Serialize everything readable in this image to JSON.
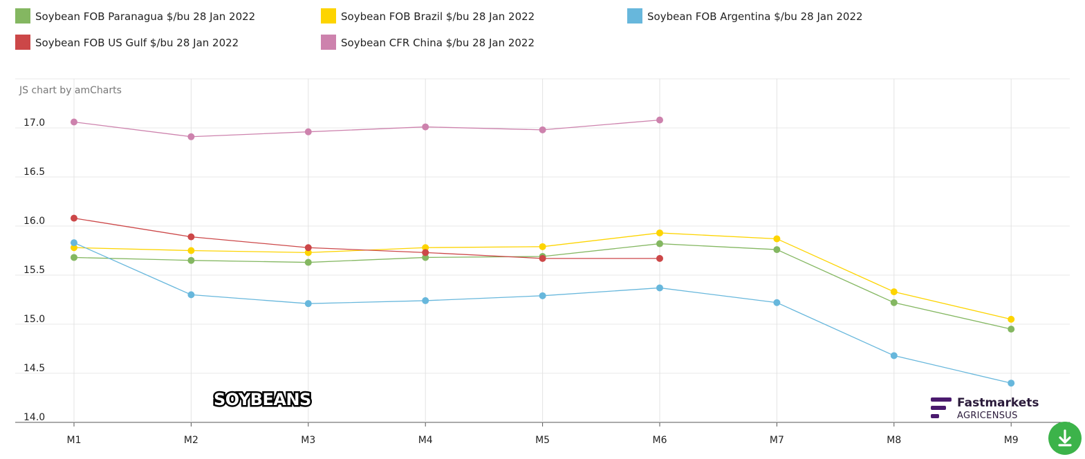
{
  "credit": "JS chart by amCharts",
  "overlay_label": "SOYBEANS",
  "brand": {
    "name": "Fastmarkets",
    "sub": "AGRICENSUS",
    "color": "#4a1a6e"
  },
  "download_icon": "download-icon",
  "chart_data": {
    "type": "line",
    "categories": [
      "M1",
      "M2",
      "M3",
      "M4",
      "M5",
      "M6",
      "M7",
      "M8",
      "M9"
    ],
    "ylim": [
      14.0,
      17.5
    ],
    "yticks": [
      "14.0",
      "14.5",
      "15.0",
      "15.5",
      "16.0",
      "16.5",
      "17.0"
    ],
    "grid": true,
    "legend_position": "top",
    "series": [
      {
        "name": "Soybean FOB Paranagua $/bu 28 Jan 2022",
        "color": "#84b761",
        "values": [
          15.68,
          15.65,
          15.63,
          15.68,
          15.69,
          15.82,
          15.76,
          15.22,
          14.95
        ]
      },
      {
        "name": "Soybean FOB Brazil $/bu 28 Jan 2022",
        "color": "#fdd400",
        "values": [
          15.78,
          15.75,
          15.73,
          15.78,
          15.79,
          15.93,
          15.87,
          15.33,
          15.05
        ]
      },
      {
        "name": "Soybean FOB Argentina $/bu 28 Jan 2022",
        "color": "#67b7dc",
        "values": [
          15.83,
          15.3,
          15.21,
          15.24,
          15.29,
          15.37,
          15.22,
          14.68,
          14.4
        ]
      },
      {
        "name": "Soybean FOB US Gulf $/bu 28 Jan 2022",
        "color": "#cc4748",
        "values": [
          16.08,
          15.89,
          15.78,
          15.73,
          15.67,
          15.67,
          null,
          null,
          null
        ]
      },
      {
        "name": "Soybean CFR China $/bu 28 Jan 2022",
        "color": "#cd82ad",
        "values": [
          17.06,
          16.91,
          16.96,
          17.01,
          16.98,
          17.08,
          null,
          null,
          null
        ]
      }
    ]
  }
}
